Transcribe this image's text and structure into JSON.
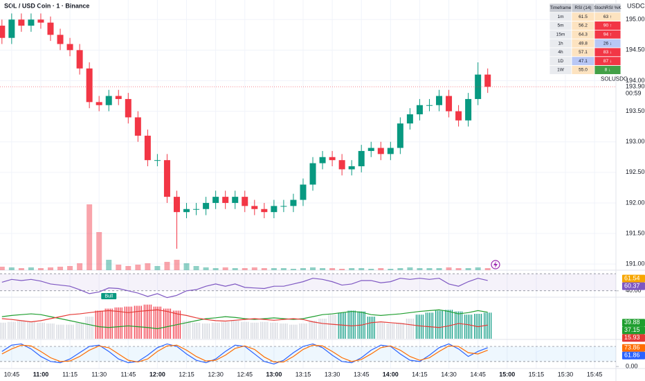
{
  "chart_data": {
    "type": "candlestick",
    "title": "SOL / USD Coin · 1 · Binance",
    "y_axis_label": "USDC",
    "x": [
      "10:40",
      "10:45",
      "10:50",
      "10:55",
      "11:00",
      "11:05",
      "11:10",
      "11:15",
      "11:20",
      "11:25",
      "11:30",
      "11:35",
      "11:40",
      "11:45",
      "11:50",
      "11:55",
      "12:00",
      "12:05",
      "12:10",
      "12:15",
      "12:20",
      "12:25",
      "12:30",
      "12:35",
      "12:40",
      "12:45",
      "12:50",
      "12:55",
      "13:00",
      "13:05",
      "13:10",
      "13:15",
      "13:20",
      "13:25",
      "13:30",
      "13:35",
      "13:40",
      "13:45",
      "13:50",
      "13:55",
      "14:00",
      "14:05",
      "14:10",
      "14:15",
      "14:20",
      "14:25",
      "14:30",
      "14:35",
      "14:40",
      "14:45",
      "14:50"
    ],
    "open": [
      194.9,
      194.7,
      195.0,
      194.9,
      195.0,
      194.95,
      194.75,
      194.6,
      194.5,
      194.2,
      193.65,
      193.6,
      193.75,
      193.7,
      193.4,
      193.1,
      192.7,
      192.7,
      192.1,
      191.85,
      191.9,
      191.9,
      192.0,
      192.1,
      192.0,
      192.1,
      191.95,
      191.9,
      191.85,
      191.95,
      191.95,
      192.05,
      192.3,
      192.65,
      192.75,
      192.7,
      192.55,
      192.6,
      192.85,
      192.9,
      192.8,
      192.9,
      193.3,
      193.45,
      193.6,
      193.6,
      193.75,
      193.5,
      193.35,
      193.7,
      194.1
    ],
    "high": [
      195.0,
      195.1,
      195.1,
      195.1,
      195.1,
      195.05,
      194.85,
      194.7,
      194.6,
      194.3,
      193.75,
      193.85,
      193.85,
      193.8,
      193.5,
      193.2,
      192.8,
      192.8,
      192.2,
      192.0,
      192.0,
      192.1,
      192.2,
      192.2,
      192.2,
      192.2,
      192.05,
      192.0,
      192.05,
      192.05,
      192.15,
      192.4,
      192.75,
      192.85,
      192.85,
      192.8,
      192.7,
      192.95,
      193.0,
      193.0,
      193.0,
      193.4,
      193.55,
      193.7,
      193.7,
      193.85,
      193.85,
      193.6,
      193.8,
      194.3,
      194.2
    ],
    "low": [
      194.6,
      194.6,
      194.8,
      194.8,
      194.85,
      194.65,
      194.5,
      194.4,
      194.1,
      193.55,
      193.5,
      193.5,
      193.6,
      193.3,
      193.0,
      192.6,
      192.6,
      192.0,
      191.25,
      191.75,
      191.8,
      191.8,
      191.9,
      191.9,
      191.9,
      191.85,
      191.8,
      191.75,
      191.75,
      191.85,
      191.85,
      191.95,
      192.2,
      192.55,
      192.6,
      192.45,
      192.45,
      192.5,
      192.75,
      192.7,
      192.7,
      192.8,
      193.2,
      193.35,
      193.5,
      193.5,
      193.4,
      193.25,
      193.25,
      193.6,
      193.8
    ],
    "close": [
      194.7,
      195.0,
      194.9,
      195.0,
      194.95,
      194.75,
      194.6,
      194.5,
      194.2,
      193.65,
      193.6,
      193.75,
      193.7,
      193.4,
      193.1,
      192.7,
      192.7,
      192.1,
      191.85,
      191.9,
      191.9,
      192.0,
      192.1,
      192.0,
      192.1,
      191.95,
      191.9,
      191.85,
      191.95,
      191.95,
      192.05,
      192.3,
      192.65,
      192.75,
      192.7,
      192.55,
      192.6,
      192.85,
      192.9,
      192.8,
      192.9,
      193.3,
      193.45,
      193.6,
      193.6,
      193.75,
      193.5,
      193.35,
      193.7,
      194.1,
      193.9
    ],
    "up_color": "#089981",
    "down_color": "#f23645",
    "ylim": [
      190.9,
      195.32
    ],
    "yticks": [
      {
        "value": 191,
        "label": "191.00"
      },
      {
        "value": 191.5,
        "label": "191.50"
      },
      {
        "value": 192,
        "label": "192.00"
      },
      {
        "value": 192.5,
        "label": "192.50"
      },
      {
        "value": 193,
        "label": "193.00"
      },
      {
        "value": 193.5,
        "label": "193.50"
      },
      {
        "value": 194,
        "label": "194.00"
      },
      {
        "value": 194.5,
        "label": "194.50"
      },
      {
        "value": 195,
        "label": "195.00"
      }
    ],
    "xlim": [
      "10:39",
      "15:56"
    ],
    "xticks": [
      "10:45",
      "11:00",
      "11:15",
      "11:30",
      "11:45",
      "12:00",
      "12:15",
      "12:30",
      "12:45",
      "13:00",
      "13:15",
      "13:30",
      "13:45",
      "14:00",
      "14:15",
      "14:30",
      "14:45",
      "15:00",
      "15:15",
      "15:30",
      "15:45"
    ],
    "grid": true,
    "last_price": {
      "value": 193.9,
      "label": "193.90"
    },
    "symbol": "SOLUSDC",
    "countdown": "00:59",
    "volume": {
      "values": [
        5,
        4,
        3,
        4,
        3,
        4,
        5,
        6,
        10,
        95,
        55,
        15,
        8,
        6,
        8,
        10,
        6,
        12,
        15,
        10,
        6,
        4,
        3,
        4,
        3,
        3,
        4,
        3,
        3,
        3,
        2,
        3,
        4,
        3,
        3,
        2,
        3,
        3,
        2,
        3,
        2,
        3,
        4,
        3,
        3,
        3,
        4,
        3,
        3,
        4,
        3
      ],
      "lim": [
        0,
        100
      ]
    }
  },
  "rsi_pane": {
    "ylim": [
      30,
      75
    ],
    "yticks": [
      {
        "value": 40,
        "label": "40.00"
      }
    ],
    "band": [
      40,
      70
    ],
    "band_color": "#7e57c2",
    "series": [
      {
        "color": "#7e57c2",
        "values": [
          55,
          60,
          58,
          60,
          57,
          52,
          50,
          48,
          42,
          35,
          38,
          45,
          44,
          40,
          36,
          30,
          35,
          28,
          32,
          40,
          42,
          48,
          52,
          48,
          52,
          46,
          45,
          44,
          48,
          48,
          52,
          56,
          62,
          60,
          56,
          50,
          52,
          58,
          58,
          54,
          56,
          62,
          60,
          62,
          60,
          62,
          52,
          48,
          56,
          62,
          58
        ]
      }
    ],
    "badges": [
      {
        "value": 61.54,
        "color": "#f7a600"
      },
      {
        "value": 60.37,
        "color": "#7e57c2"
      }
    ],
    "annotation": "Bull",
    "annotation_x": "11:35",
    "annotation_color": "#089981"
  },
  "osc_pane": {
    "ylim": [
      0,
      100
    ],
    "histogram": {
      "values": [
        40,
        42,
        45,
        42,
        40,
        38,
        35,
        35,
        40,
        55,
        70,
        75,
        78,
        80,
        82,
        85,
        80,
        75,
        70,
        45,
        40,
        38,
        40,
        42,
        45,
        42,
        40,
        42,
        40,
        38,
        35,
        38,
        45,
        50,
        60,
        65,
        70,
        68,
        55,
        40,
        38,
        40,
        50,
        60,
        65,
        70,
        72,
        68,
        60,
        62,
        65
      ],
      "colors": [
        "#d1d4dc",
        "#d1d4dc",
        "#d1d4dc",
        "#d1d4dc",
        "#d1d4dc",
        "#d1d4dc",
        "#d1d4dc",
        "#d1d4dc",
        "#d1d4dc",
        "#d1d4dc",
        "#f23645",
        "#f23645",
        "#f23645",
        "#f23645",
        "#f23645",
        "#f23645",
        "#f23645",
        "#f23645",
        "#f23645",
        "#d1d4dc",
        "#d1d4dc",
        "#d1d4dc",
        "#d1d4dc",
        "#d1d4dc",
        "#d1d4dc",
        "#d1d4dc",
        "#d1d4dc",
        "#d1d4dc",
        "#d1d4dc",
        "#d1d4dc",
        "#d1d4dc",
        "#d1d4dc",
        "#d1d4dc",
        "#d1d4dc",
        "#d1d4dc",
        "#089981",
        "#089981",
        "#089981",
        "#089981",
        "#d1d4dc",
        "#d1d4dc",
        "#d1d4dc",
        "#d1d4dc",
        "#089981",
        "#089981",
        "#089981",
        "#089981",
        "#089981",
        "#089981",
        "#089981",
        "#089981"
      ]
    },
    "series": [
      {
        "color": "#1e9e2e",
        "values": [
          55,
          58,
          60,
          62,
          60,
          55,
          50,
          45,
          40,
          35,
          30,
          28,
          30,
          32,
          30,
          28,
          25,
          30,
          35,
          40,
          45,
          50,
          52,
          55,
          53,
          50,
          48,
          50,
          52,
          50,
          48,
          50,
          55,
          60,
          62,
          65,
          68,
          66,
          60,
          58,
          60,
          62,
          65,
          68,
          70,
          72,
          68,
          62,
          65,
          70,
          66
        ]
      },
      {
        "color": "#e53935",
        "values": [
          50,
          48,
          45,
          42,
          45,
          50,
          55,
          60,
          62,
          65,
          68,
          70,
          68,
          65,
          68,
          70,
          72,
          68,
          62,
          58,
          52,
          48,
          45,
          44,
          46,
          48,
          50,
          48,
          46,
          48,
          50,
          48,
          42,
          38,
          36,
          34,
          32,
          34,
          40,
          42,
          40,
          38,
          35,
          32,
          30,
          28,
          32,
          38,
          35,
          30,
          34
        ]
      }
    ],
    "badges": [
      {
        "value": 39.88,
        "color": "#1e9e2e"
      },
      {
        "value": 37.15,
        "color": "#1e9e2e"
      },
      {
        "value": 15.93,
        "color": "#e53935"
      }
    ]
  },
  "stoch_pane": {
    "ylim": [
      -8,
      105
    ],
    "yticks": [
      {
        "value": 0,
        "label": "0.00"
      }
    ],
    "band": [
      20,
      80
    ],
    "band_color": "#2196f3",
    "series": [
      {
        "color": "#2962ff",
        "values": [
          60,
          85,
          90,
          70,
          40,
          20,
          15,
          30,
          55,
          80,
          85,
          60,
          30,
          15,
          20,
          45,
          75,
          90,
          80,
          50,
          25,
          15,
          30,
          60,
          85,
          80,
          50,
          20,
          10,
          25,
          55,
          80,
          90,
          75,
          45,
          20,
          15,
          35,
          65,
          85,
          80,
          50,
          25,
          20,
          45,
          75,
          90,
          70,
          40,
          60,
          75
        ]
      },
      {
        "color": "#ff6d00",
        "values": [
          50,
          70,
          85,
          82,
          60,
          35,
          20,
          22,
          40,
          65,
          82,
          75,
          50,
          25,
          18,
          30,
          60,
          82,
          85,
          65,
          40,
          22,
          25,
          45,
          72,
          82,
          68,
          38,
          18,
          18,
          40,
          68,
          85,
          82,
          60,
          35,
          20,
          28,
          50,
          75,
          82,
          65,
          40,
          25,
          35,
          60,
          82,
          80,
          55,
          50,
          65
        ]
      }
    ],
    "badges": [
      {
        "value": 73.86,
        "color": "#ff6d00"
      },
      {
        "value": 61.86,
        "color": "#2962ff"
      }
    ]
  },
  "table": {
    "header": [
      "Timeframe",
      "RSI (14)",
      "StochRSI %K"
    ],
    "rows": [
      [
        "1m",
        "61.5",
        "63 ↑"
      ],
      [
        "5m",
        "56.2",
        "90 ↑"
      ],
      [
        "15m",
        "64.3",
        "94 ↑"
      ],
      [
        "1h",
        "49.8",
        "26 ↓"
      ],
      [
        "4h",
        "57.1",
        "83 ↓"
      ],
      [
        "1D",
        "47.1",
        "87 ↓"
      ],
      [
        "1W",
        "55.0",
        "8 ↓"
      ]
    ],
    "cell_colors": [
      [
        "#e9ebef",
        "#fde3c0",
        "#fde3c0"
      ],
      [
        "#e9ebef",
        "#fde3c0",
        "#f23645"
      ],
      [
        "#e9ebef",
        "#fde3c0",
        "#f23645"
      ],
      [
        "#e9ebef",
        "#fde3c0",
        "#b8c7f5"
      ],
      [
        "#e9ebef",
        "#fde3c0",
        "#f23645"
      ],
      [
        "#e9ebef",
        "#b8c7f5",
        "#f23645"
      ],
      [
        "#e9ebef",
        "#fde3c0",
        "#43a047"
      ]
    ]
  }
}
